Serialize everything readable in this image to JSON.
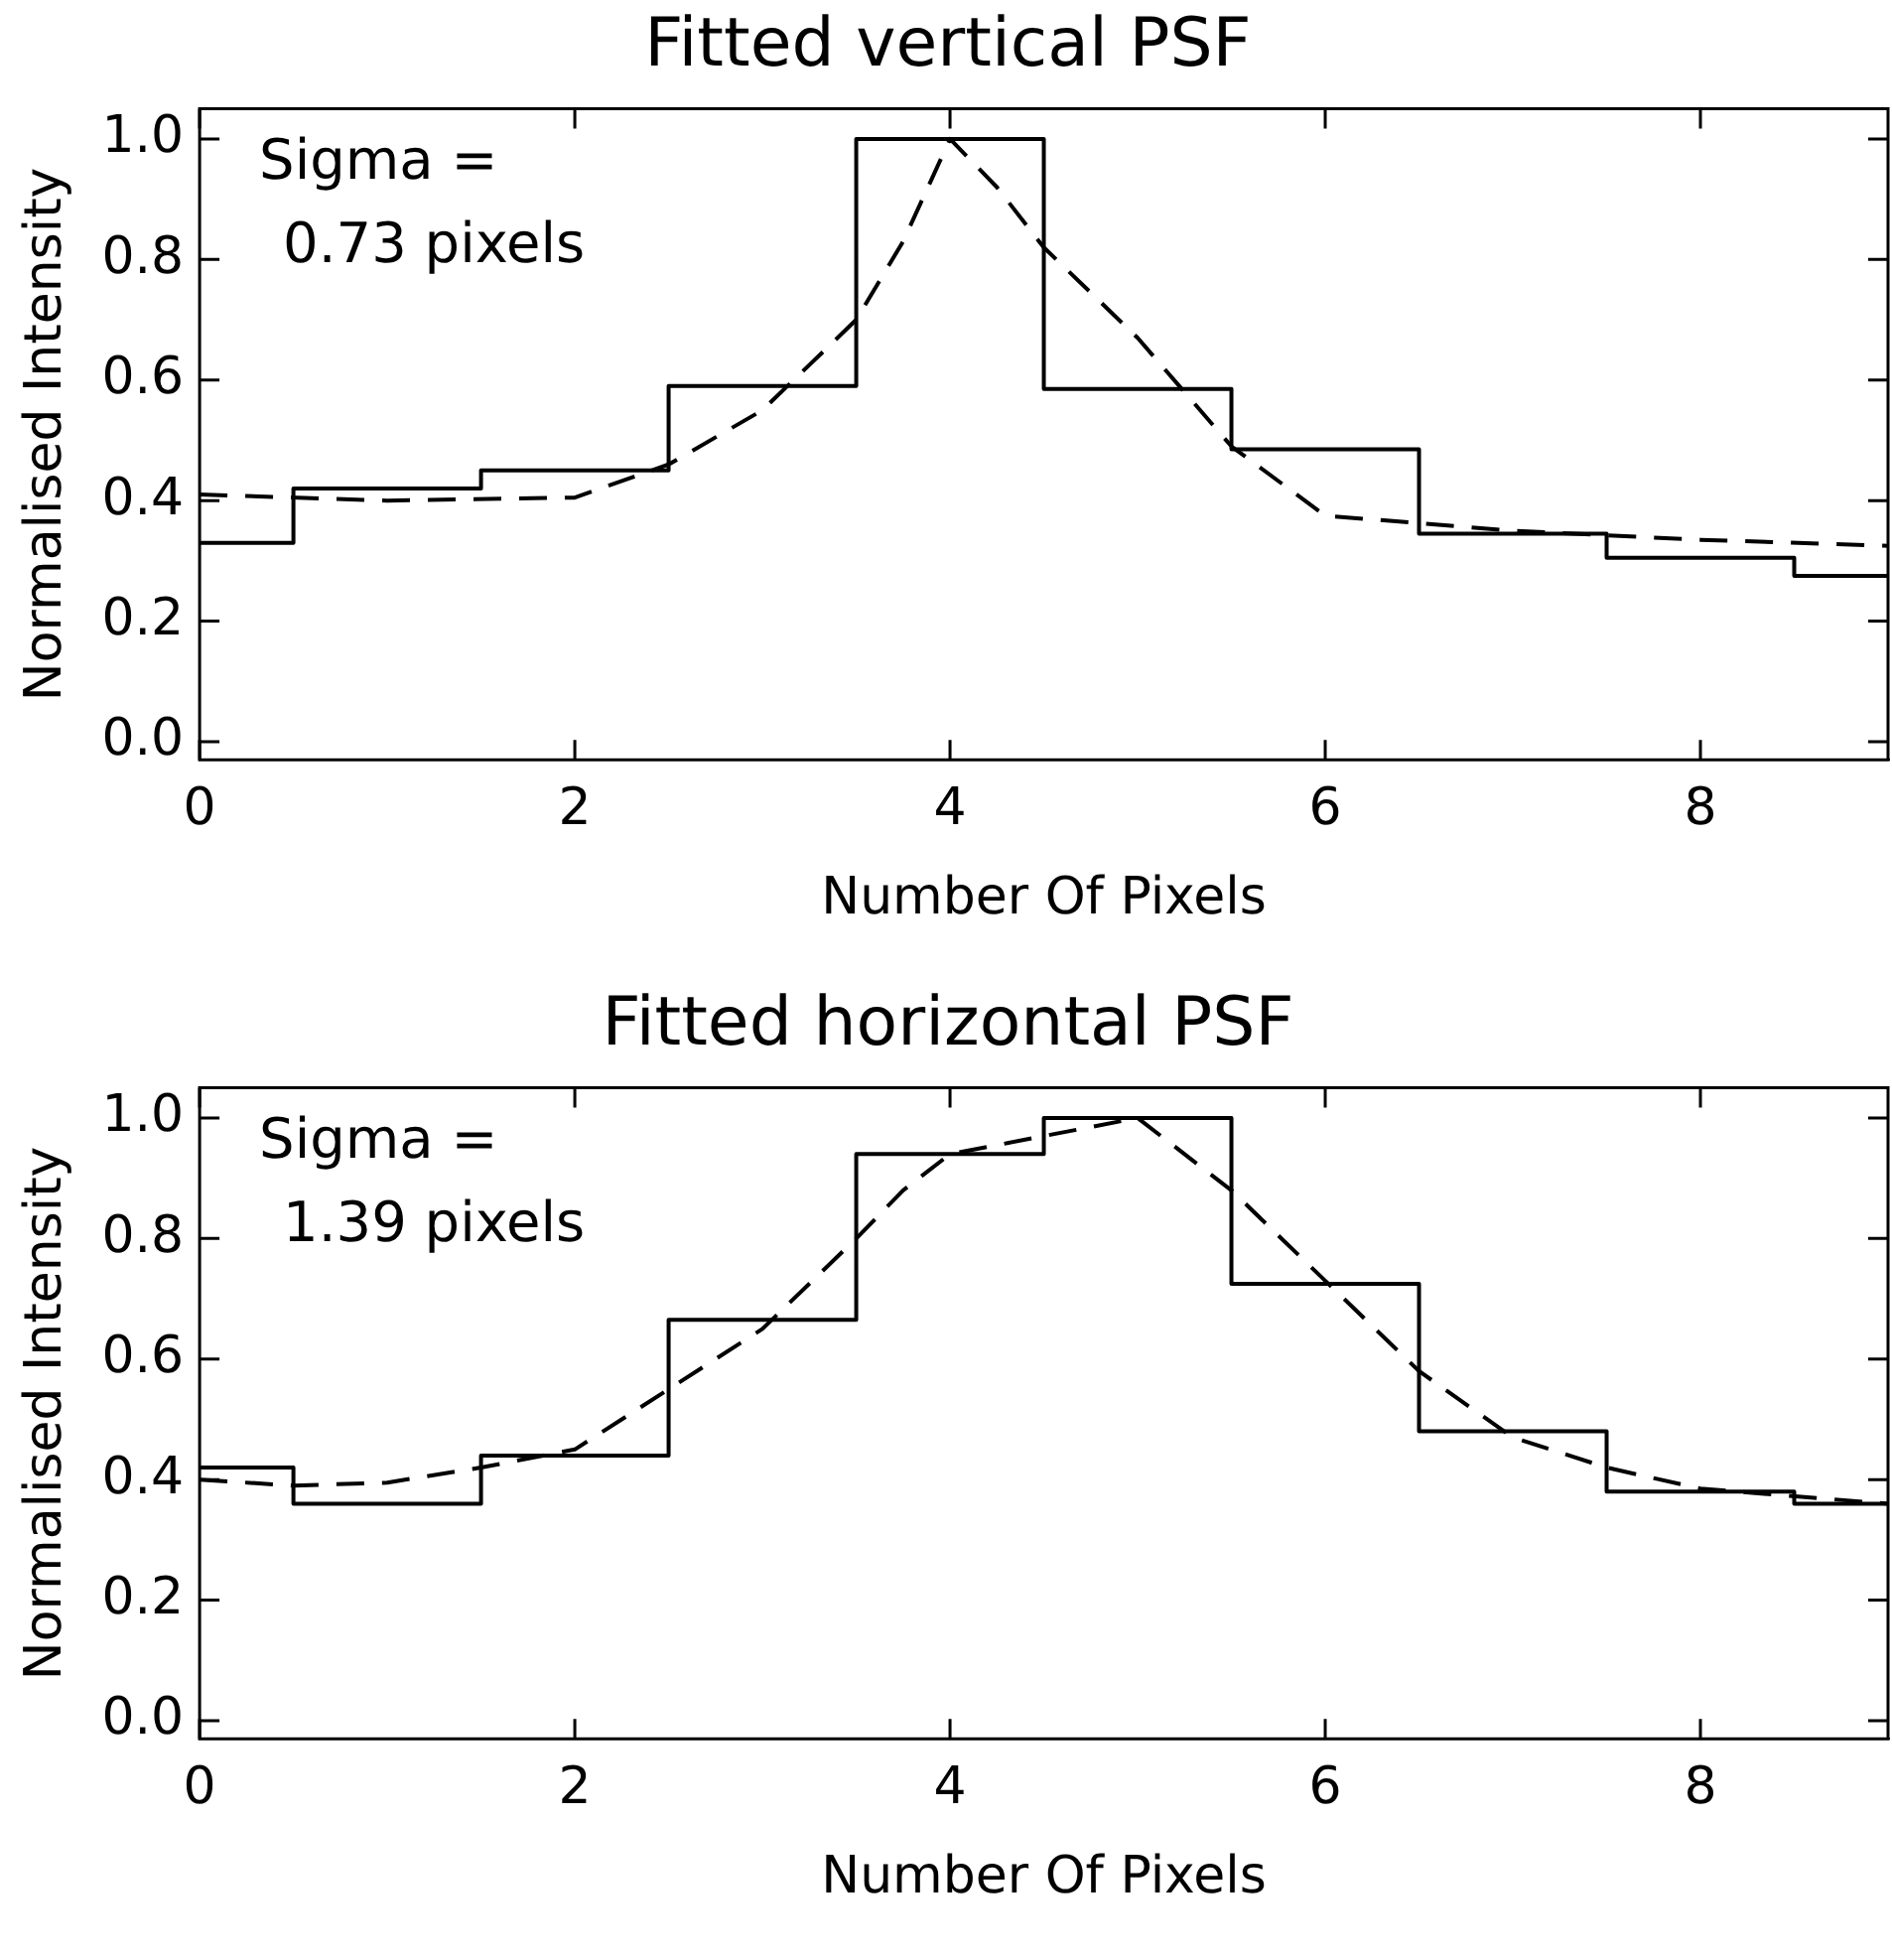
{
  "chart_data": [
    {
      "type": "line",
      "title": "Fitted vertical PSF",
      "xlabel": "Number Of Pixels",
      "ylabel": "Normalised Intensity",
      "xlim": [
        0,
        9
      ],
      "xticks": [
        0,
        2,
        4,
        6,
        8
      ],
      "ylim": [
        -0.03,
        1.05
      ],
      "yticks": [
        {
          "value": 0,
          "label": "0.0"
        },
        {
          "value": 0.2,
          "label": "0.2"
        },
        {
          "value": 0.4,
          "label": "0.4"
        },
        {
          "value": 0.6,
          "label": "0.6"
        },
        {
          "value": 0.8,
          "label": "0.8"
        },
        {
          "value": 1,
          "label": "1.0"
        }
      ],
      "grid": false,
      "legend": false,
      "marker": "none",
      "annotations": [
        "Sigma =",
        "0.73 pixels"
      ],
      "series": [
        {
          "type": "step",
          "color": "#000000",
          "line_style": "solid",
          "x": [
            0,
            1,
            2,
            3,
            4,
            5,
            6,
            7,
            8,
            9
          ],
          "values": [
            0.33,
            0.42,
            0.45,
            0.59,
            1.0,
            0.585,
            0.485,
            0.345,
            0.305,
            0.275
          ]
        },
        {
          "type": "line",
          "color": "#000000",
          "line_style": "dashed",
          "x": [
            0,
            1,
            2,
            2.5,
            3,
            3.5,
            3.75,
            4,
            4.25,
            4.5,
            5,
            5.5,
            6,
            7,
            8,
            9
          ],
          "values": [
            0.41,
            0.4,
            0.405,
            0.46,
            0.55,
            0.7,
            0.83,
            1.0,
            0.92,
            0.82,
            0.67,
            0.49,
            0.375,
            0.35,
            0.335,
            0.325
          ]
        }
      ]
    },
    {
      "type": "line",
      "title": "Fitted horizontal PSF",
      "xlabel": "Number Of Pixels",
      "ylabel": "Normalised Intensity",
      "xlim": [
        0,
        9
      ],
      "xticks": [
        0,
        2,
        4,
        6,
        8
      ],
      "ylim": [
        -0.03,
        1.05
      ],
      "yticks": [
        {
          "value": 0,
          "label": "0.0"
        },
        {
          "value": 0.2,
          "label": "0.2"
        },
        {
          "value": 0.4,
          "label": "0.4"
        },
        {
          "value": 0.6,
          "label": "0.6"
        },
        {
          "value": 0.8,
          "label": "0.8"
        },
        {
          "value": 1,
          "label": "1.0"
        }
      ],
      "grid": false,
      "legend": false,
      "marker": "none",
      "annotations": [
        "Sigma =",
        "1.39 pixels"
      ],
      "series": [
        {
          "type": "step",
          "color": "#000000",
          "line_style": "solid",
          "x": [
            0,
            1,
            2,
            3,
            4,
            5,
            6,
            7,
            8,
            9
          ],
          "values": [
            0.42,
            0.36,
            0.44,
            0.665,
            0.94,
            1.0,
            0.725,
            0.48,
            0.38,
            0.36
          ]
        },
        {
          "type": "line",
          "color": "#000000",
          "line_style": "dashed",
          "x": [
            0,
            0.5,
            1,
            1.5,
            2,
            2.5,
            3,
            3.5,
            3.75,
            4,
            4.5,
            5,
            5.5,
            6,
            6.5,
            7,
            7.5,
            8,
            9
          ],
          "values": [
            0.4,
            0.39,
            0.395,
            0.42,
            0.45,
            0.55,
            0.65,
            0.8,
            0.88,
            0.94,
            0.97,
            1.0,
            0.88,
            0.73,
            0.58,
            0.47,
            0.42,
            0.385,
            0.36
          ]
        }
      ]
    }
  ]
}
